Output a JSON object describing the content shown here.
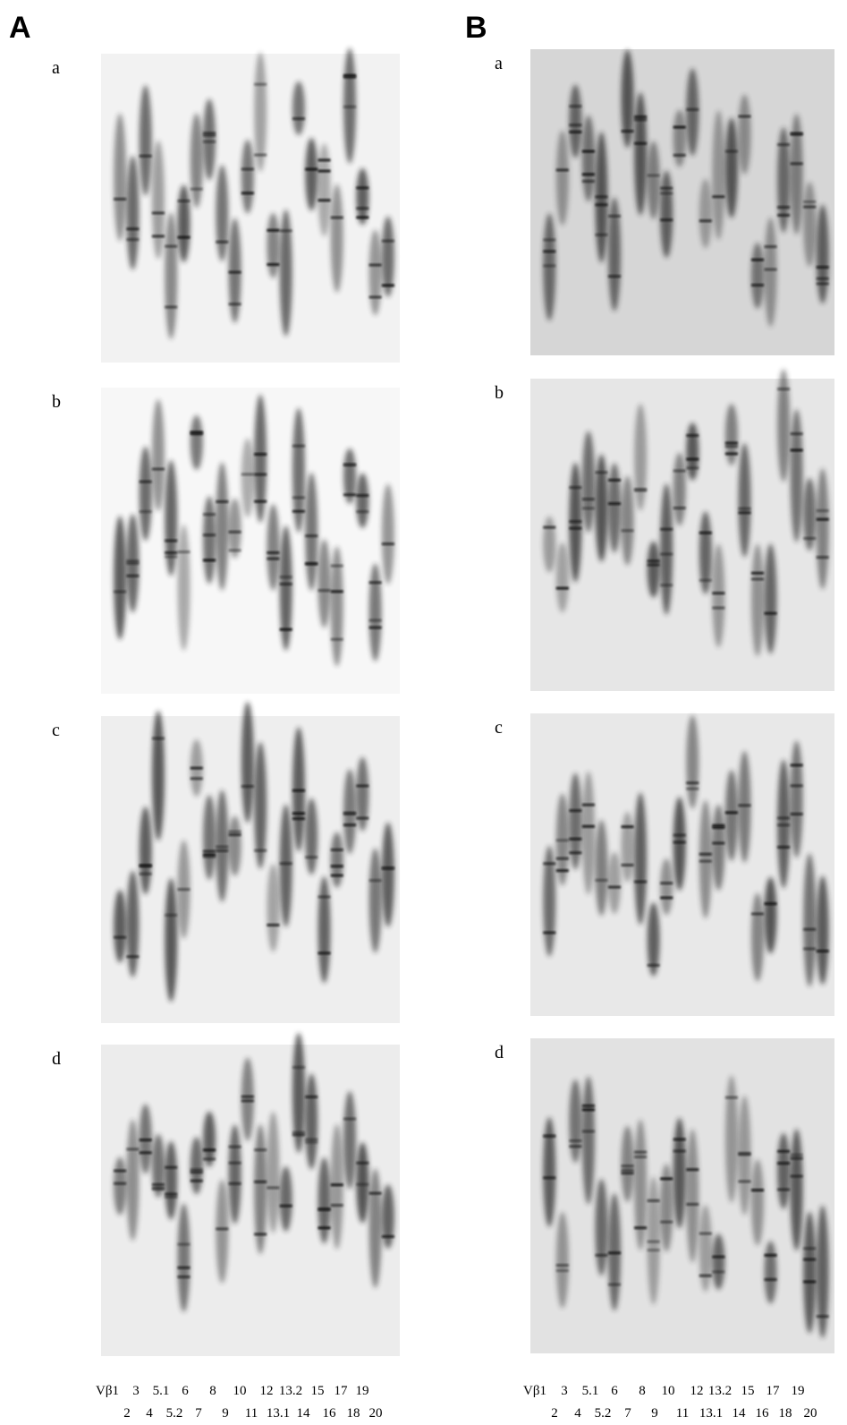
{
  "panels": [
    {
      "label": "A",
      "gels": [
        "a",
        "b",
        "c",
        "d"
      ],
      "lanes_top": [
        "Vβ1",
        "3",
        "5.1",
        "6",
        "8",
        "10",
        "12",
        "13.2",
        "15",
        "17",
        "19"
      ],
      "lanes_bottom": [
        "2",
        "4",
        "5.2",
        "7",
        "9",
        "11",
        "13.1",
        "14",
        "16",
        "18",
        "20"
      ]
    },
    {
      "label": "B",
      "gels": [
        "a",
        "b",
        "c",
        "d"
      ],
      "lanes_top": [
        "Vβ1",
        "3",
        "5.1",
        "6",
        "8",
        "10",
        "12",
        "13.2",
        "15",
        "17",
        "19"
      ],
      "lanes_bottom": [
        "2",
        "4",
        "5.2",
        "7",
        "9",
        "11",
        "13.1",
        "14",
        "16",
        "18",
        "20"
      ]
    }
  ]
}
